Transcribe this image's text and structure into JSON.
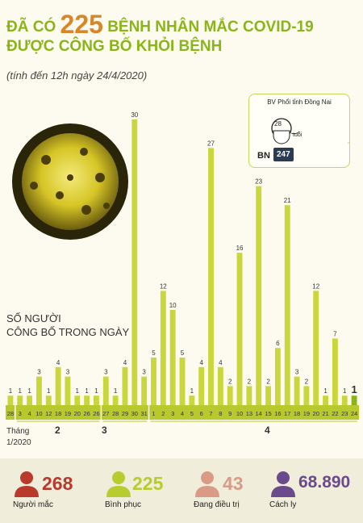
{
  "header": {
    "title_prefix": "ĐÃ CÓ",
    "title_number": "225",
    "title_suffix": "BỆNH NHÂN MẮC COVID-19",
    "title_line2": "ĐƯỢC CÔNG BỐ KHỎI BỆNH",
    "subtitle": "(tính đến 12h ngày 24/4/2020)"
  },
  "patient_card": {
    "hospital": "BV Phổi tỉnh Đồng Nai",
    "age": "28",
    "age_unit": "tuổi",
    "bn_label": "BN",
    "bn_number": "247"
  },
  "daily_label_line1": "SỐ NGƯỜI",
  "daily_label_line2": "CÔNG BỐ TRONG NGÀY",
  "month_word": "Tháng",
  "month_year": "1/2020",
  "month_labels": [
    "2",
    "3",
    "4"
  ],
  "chart_data": {
    "type": "bar",
    "categories": [
      "28",
      "3",
      "4",
      "10",
      "12",
      "18",
      "19",
      "20",
      "26",
      "26",
      "27",
      "28",
      "29",
      "30",
      "31",
      "1",
      "2",
      "3",
      "4",
      "5",
      "6",
      "7",
      "8",
      "9",
      "10",
      "13",
      "14",
      "15",
      "16",
      "17",
      "18",
      "19",
      "20",
      "21",
      "22",
      "23",
      "24"
    ],
    "values": [
      1,
      1,
      1,
      3,
      1,
      4,
      3,
      1,
      1,
      1,
      3,
      1,
      4,
      30,
      3,
      5,
      12,
      10,
      5,
      1,
      4,
      27,
      4,
      2,
      16,
      2,
      23,
      2,
      6,
      21,
      3,
      2,
      12,
      1,
      7,
      1,
      1
    ],
    "months": [
      "1",
      "2",
      "2",
      "2",
      "2",
      "2",
      "2",
      "2",
      "2",
      "2",
      "3",
      "3",
      "3",
      "3",
      "3",
      "4",
      "4",
      "4",
      "4",
      "4",
      "4",
      "4",
      "4",
      "4",
      "4",
      "4",
      "4",
      "4",
      "4",
      "4",
      "4",
      "4",
      "4",
      "4",
      "4",
      "4",
      "4"
    ],
    "highlight_last": true,
    "colors": {
      "bar": "#c9d63c",
      "highlight": "#8ab519",
      "axis_bg": "#b8c92e"
    }
  },
  "stats": [
    {
      "value": "268",
      "label": "Người mắc",
      "color": "#b93a2b",
      "icon": "person-icon"
    },
    {
      "value": "225",
      "label": "Bình phục",
      "color": "#b7cc2e",
      "icon": "person-icon"
    },
    {
      "value": "43",
      "label": "Đang điều trị",
      "color": "#d99b86",
      "icon": "person-icon"
    },
    {
      "value": "68.890",
      "label": "Cách ly",
      "color": "#6b4a8c",
      "icon": "person-icon"
    }
  ]
}
